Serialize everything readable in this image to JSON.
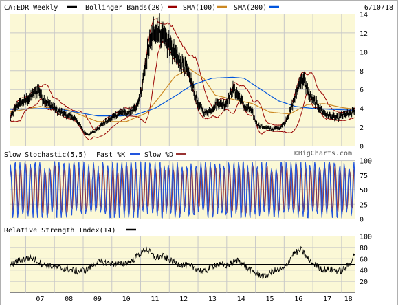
{
  "chart_data": [
    {
      "type": "line",
      "symbol": "CA:EDR",
      "period": "Weekly",
      "date": "6/10/18",
      "watermark": "©BigCharts.com",
      "legend": [
        {
          "label": "CA:EDR Weekly",
          "color": "#000000"
        },
        {
          "label": "Bollinger Bands(20)",
          "color": "#990000"
        },
        {
          "label": "SMA(100)",
          "color": "#cc8822"
        },
        {
          "label": "SMA(200)",
          "color": "#0055dd"
        }
      ],
      "ylim": [
        0,
        14
      ],
      "yticks": [
        0,
        2,
        4,
        6,
        8,
        10,
        12,
        14
      ],
      "x_domain": [
        2006.45,
        2018.47
      ],
      "xticks": [
        "07",
        "08",
        "09",
        "10",
        "11",
        "12",
        "13",
        "14",
        "15",
        "16",
        "17",
        "18"
      ],
      "xtick_years": [
        2007,
        2008,
        2009,
        2010,
        2011,
        2012,
        2013,
        2014,
        2015,
        2016,
        2017,
        2018
      ],
      "price_anchors": {
        "x": [
          2006.45,
          2006.7,
          2007.0,
          2007.25,
          2007.45,
          2007.6,
          2007.8,
          2008.0,
          2008.3,
          2008.6,
          2008.85,
          2009.05,
          2009.2,
          2009.4,
          2009.7,
          2010.0,
          2010.3,
          2010.6,
          2010.85,
          2011.0,
          2011.1,
          2011.25,
          2011.5,
          2011.75,
          2011.95,
          2012.1,
          2012.3,
          2012.5,
          2012.8,
          2013.0,
          2013.25,
          2013.45,
          2013.7,
          2013.95,
          2014.2,
          2014.45,
          2014.65,
          2014.85,
          2015.05,
          2015.3,
          2015.6,
          2015.85,
          2016.0,
          2016.2,
          2016.4,
          2016.55,
          2016.7,
          2016.9,
          2017.1,
          2017.35,
          2017.6,
          2017.85,
          2018.1,
          2018.3,
          2018.47
        ],
        "y": [
          2.9,
          4.3,
          4.8,
          5.5,
          6.0,
          5.0,
          4.5,
          4.0,
          3.4,
          3.2,
          2.4,
          1.4,
          1.2,
          1.6,
          2.4,
          3.0,
          3.6,
          3.6,
          3.9,
          5.5,
          7.2,
          10.0,
          12.5,
          12.0,
          11.0,
          10.0,
          9.2,
          8.7,
          6.5,
          4.5,
          3.5,
          3.8,
          4.6,
          4.3,
          6.0,
          5.2,
          4.0,
          3.8,
          2.3,
          2.0,
          1.8,
          2.0,
          2.4,
          3.6,
          5.4,
          7.0,
          6.8,
          5.2,
          4.6,
          3.6,
          3.2,
          3.0,
          3.3,
          3.4,
          3.9
        ]
      },
      "sma100_anchors": {
        "x": [
          2006.45,
          2007.5,
          2008.5,
          2009.5,
          2010.5,
          2011.2,
          2011.6,
          2012.2,
          2012.7,
          2013.2,
          2013.6,
          2014.3,
          2014.9,
          2015.5,
          2016.2,
          2016.8,
          2017.4,
          2018.0,
          2018.47
        ],
        "y": [
          3.6,
          4.2,
          3.8,
          2.6,
          2.6,
          3.5,
          5.0,
          7.4,
          8.2,
          7.2,
          5.4,
          4.9,
          4.5,
          3.6,
          3.4,
          4.4,
          4.5,
          4.1,
          3.9
        ]
      },
      "sma200_anchors": {
        "x": [
          2006.45,
          2008.0,
          2009.5,
          2010.3,
          2010.8,
          2011.5,
          2012.2,
          2012.8,
          2013.5,
          2014.2,
          2014.6,
          2015.2,
          2015.8,
          2016.4,
          2017.0,
          2017.6,
          2018.47
        ],
        "y": [
          3.9,
          4.0,
          3.2,
          3.2,
          3.3,
          4.0,
          5.3,
          6.5,
          7.2,
          7.3,
          7.2,
          6.0,
          4.8,
          4.2,
          4.0,
          3.9,
          3.8
        ]
      }
    },
    {
      "type": "line",
      "title": "Slow Stochastic(5,5)",
      "legend": [
        {
          "label": "Fast %K",
          "color": "#2255dd"
        },
        {
          "label": "Slow %D",
          "color": "#993333"
        }
      ],
      "ylim": [
        0,
        100
      ],
      "yticks": [
        0,
        25,
        50,
        75,
        100
      ]
    },
    {
      "type": "line",
      "title": "Relative Strength Index(14)",
      "legend": [
        {
          "label": "",
          "color": "#000000"
        }
      ],
      "ylim": [
        0,
        100
      ],
      "yticks": [
        20,
        40,
        60,
        80,
        100
      ],
      "reference_line": 50,
      "rsi_anchors": {
        "x": [
          2006.45,
          2006.8,
          2007.2,
          2007.6,
          2008.0,
          2008.4,
          2008.8,
          2009.1,
          2009.5,
          2009.9,
          2010.3,
          2010.7,
          2011.0,
          2011.2,
          2011.5,
          2011.8,
          2012.2,
          2012.6,
          2012.9,
          2013.2,
          2013.6,
          2014.0,
          2014.4,
          2014.8,
          2015.0,
          2015.3,
          2015.6,
          2016.0,
          2016.3,
          2016.6,
          2016.9,
          2017.3,
          2017.7,
          2018.0,
          2018.3,
          2018.47
        ],
        "y": [
          48,
          58,
          62,
          50,
          45,
          42,
          38,
          40,
          55,
          52,
          50,
          56,
          70,
          78,
          62,
          64,
          52,
          48,
          44,
          36,
          50,
          48,
          58,
          40,
          35,
          28,
          38,
          42,
          68,
          76,
          55,
          42,
          40,
          38,
          52,
          72
        ]
      }
    }
  ]
}
